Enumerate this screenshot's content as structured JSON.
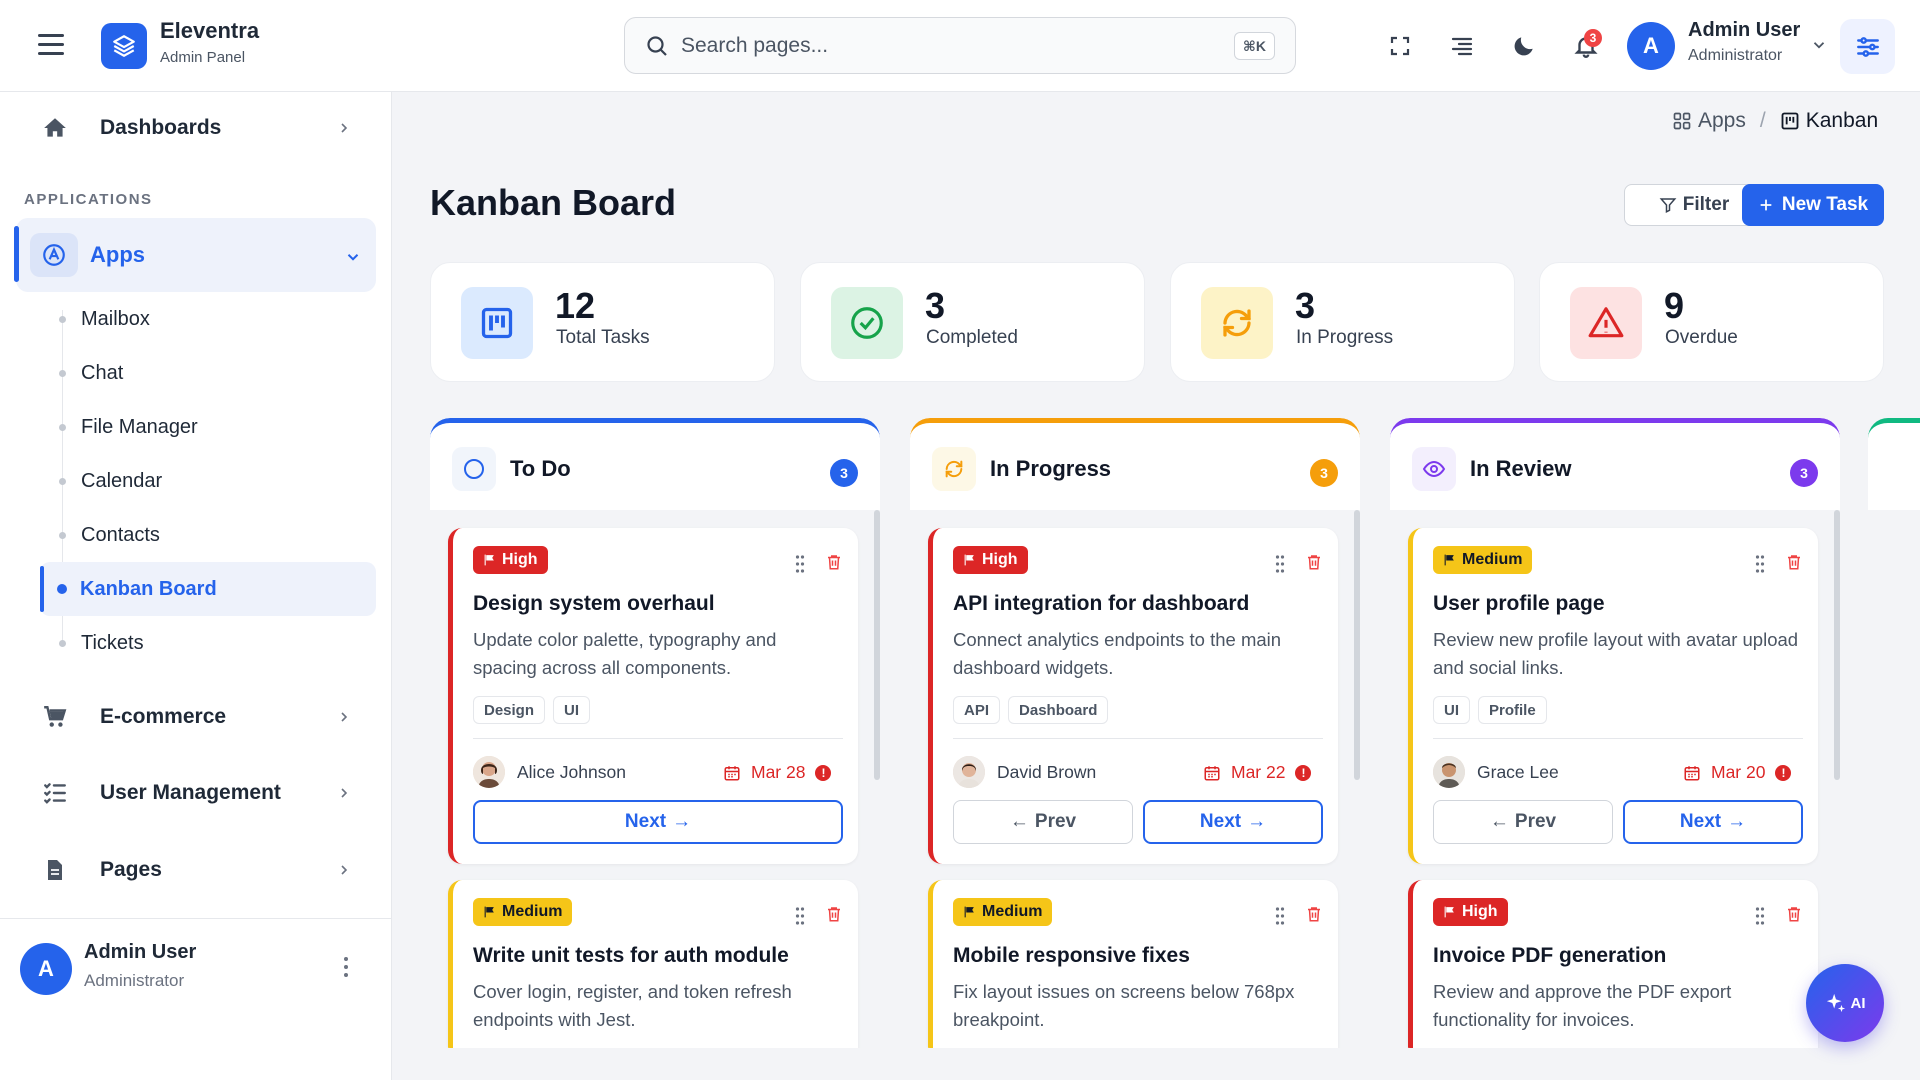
{
  "header": {
    "brand_name": "Eleventra",
    "brand_sub": "Admin Panel",
    "search_placeholder": "Search pages...",
    "search_shortcut": "⌘K",
    "notification_count": "3",
    "user_initial": "A",
    "user_name": "Admin User",
    "user_role": "Administrator"
  },
  "sidebar": {
    "dashboards": "Dashboards",
    "section_label": "APPLICATIONS",
    "apps": "Apps",
    "sub_items": [
      "Mailbox",
      "Chat",
      "File Manager",
      "Calendar",
      "Contacts",
      "Kanban Board",
      "Tickets"
    ],
    "ecommerce": "E-commerce",
    "user_management": "User Management",
    "pages": "Pages",
    "footer_initial": "A",
    "footer_name": "Admin User",
    "footer_role": "Administrator"
  },
  "breadcrumb": {
    "parent": "Apps",
    "separator": "/",
    "current": "Kanban"
  },
  "page": {
    "title": "Kanban Board",
    "filter_label": "Filter",
    "new_task_label": "New Task"
  },
  "stats": [
    {
      "value": "12",
      "label": "Total Tasks",
      "color": "#2563eb"
    },
    {
      "value": "3",
      "label": "Completed",
      "color": "#16a34a"
    },
    {
      "value": "3",
      "label": "In Progress",
      "color": "#f59e0b"
    },
    {
      "value": "9",
      "label": "Overdue",
      "color": "#dc2626"
    }
  ],
  "columns": [
    {
      "title": "To Do",
      "count": "3",
      "color": "#2563eb",
      "cards": [
        {
          "priority": "High",
          "title": "Design system overhaul",
          "desc": "Update color palette, typography and spacing across all components.",
          "tags": [
            "Design",
            "UI"
          ],
          "assignee": "Alice Johnson",
          "due": "Mar 28",
          "next": "Next"
        },
        {
          "priority": "Medium",
          "title": "Write unit tests for auth module",
          "desc": "Cover login, register, and token refresh endpoints with Jest."
        }
      ]
    },
    {
      "title": "In Progress",
      "count": "3",
      "color": "#f59e0b",
      "cards": [
        {
          "priority": "High",
          "title": "API integration for dashboard",
          "desc": "Connect analytics endpoints to the main dashboard widgets.",
          "tags": [
            "API",
            "Dashboard"
          ],
          "assignee": "David Brown",
          "due": "Mar 22",
          "prev": "Prev",
          "next": "Next"
        },
        {
          "priority": "Medium",
          "title": "Mobile responsive fixes",
          "desc": "Fix layout issues on screens below 768px breakpoint."
        }
      ]
    },
    {
      "title": "In Review",
      "count": "3",
      "color": "#7c3aed",
      "cards": [
        {
          "priority": "Medium",
          "title": "User profile page",
          "desc": "Review new profile layout with avatar upload and social links.",
          "tags": [
            "UI",
            "Profile"
          ],
          "assignee": "Grace Lee",
          "due": "Mar 20",
          "prev": "Prev",
          "next": "Next"
        },
        {
          "priority": "High",
          "title": "Invoice PDF generation",
          "desc": "Review and approve the PDF export functionality for invoices."
        }
      ]
    }
  ],
  "ai_label": "AI",
  "colors": {
    "accent": "#2563eb",
    "high": "#dc2626",
    "medium": "#f5c518"
  }
}
